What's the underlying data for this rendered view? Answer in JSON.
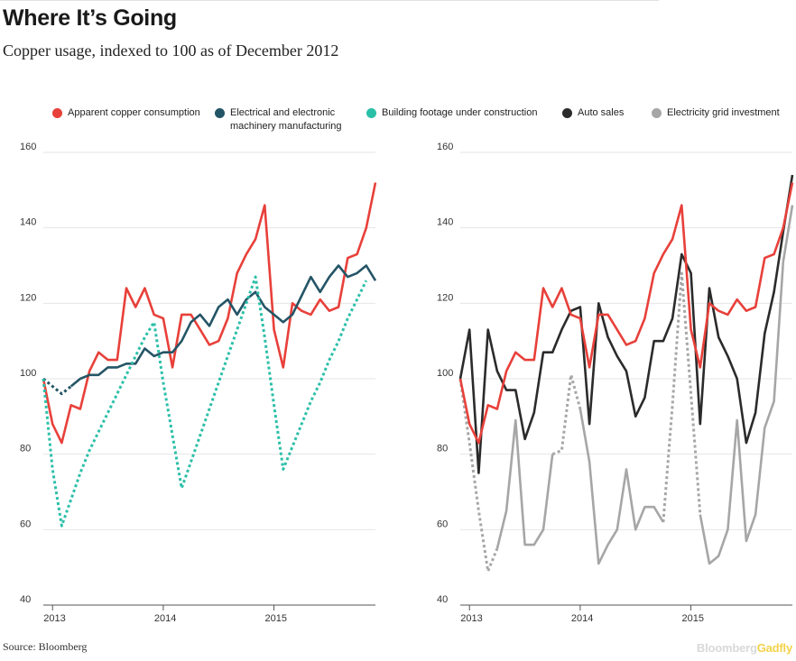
{
  "header": {
    "title": "Where It’s Going",
    "subtitle": "Copper usage, indexed to 100 as of December 2012"
  },
  "legend": [
    {
      "key": "copper",
      "label": "Apparent copper consumption",
      "color": "#e8403a"
    },
    {
      "key": "electrical",
      "label": "Electrical and electronic machinery manufacturing",
      "color": "#245566"
    },
    {
      "key": "building",
      "label": "Building footage under construction",
      "color": "#2bbfa8"
    },
    {
      "key": "auto",
      "label": "Auto sales",
      "color": "#2b2b2b"
    },
    {
      "key": "grid",
      "label": "Electricity grid investment",
      "color": "#a6a6a6"
    }
  ],
  "footer": {
    "source": "Source: Bloomberg",
    "brand_a": "Bloomberg",
    "brand_b": "Gadfly"
  },
  "chart_data": [
    {
      "type": "line",
      "x_start": "2012-12",
      "x_labels": [
        "2013",
        "2014",
        "2015"
      ],
      "ylim": [
        40,
        160
      ],
      "yticks": [
        40,
        60,
        80,
        100,
        120,
        140,
        160
      ],
      "series": [
        {
          "name": "Apparent copper consumption",
          "color": "#e8403a",
          "style": "solid",
          "values": [
            100,
            88,
            83,
            93,
            92,
            102,
            107,
            105,
            105,
            124,
            119,
            124,
            117,
            116,
            103,
            117,
            117,
            113,
            109,
            110,
            116,
            128,
            133,
            137,
            146,
            113,
            103,
            120,
            118,
            117,
            121,
            118,
            119,
            132,
            133,
            140,
            152
          ]
        },
        {
          "name": "Electrical and electronic machinery manufacturing",
          "color": "#245566",
          "style": "solid",
          "dashed_prefix": 3,
          "values": [
            100,
            98,
            96,
            98,
            100,
            101,
            101,
            103,
            103,
            104,
            104,
            108,
            106,
            107,
            107,
            110,
            115,
            117,
            114,
            119,
            121,
            117,
            121,
            123,
            119,
            117,
            115,
            117,
            122,
            127,
            123,
            127,
            130,
            127,
            128,
            130,
            126
          ]
        },
        {
          "name": "Building footage under construction",
          "color": "#2bbfa8",
          "style": "dotted",
          "values": [
            100,
            76,
            61,
            68,
            75,
            81,
            86,
            91,
            96,
            101,
            106,
            111,
            115,
            99,
            85,
            71,
            78,
            85,
            92,
            99,
            106,
            113,
            120,
            127,
            111,
            93,
            76,
            82,
            88,
            94,
            99,
            105,
            110,
            116,
            121,
            126
          ]
        }
      ]
    },
    {
      "type": "line",
      "x_start": "2012-12",
      "x_labels": [
        "2013",
        "2014",
        "2015"
      ],
      "ylim": [
        40,
        160
      ],
      "yticks": [
        40,
        60,
        80,
        100,
        120,
        140,
        160
      ],
      "series": [
        {
          "name": "Electricity grid investment",
          "color": "#a6a6a6",
          "style": "solid",
          "dotted_ranges": [
            [
              0,
              4
            ],
            [
              10,
              13
            ],
            [
              22,
              26
            ]
          ],
          "values": [
            100,
            83,
            65,
            49,
            55,
            65,
            89,
            56,
            56,
            60,
            80,
            81,
            101,
            92,
            78,
            51,
            56,
            60,
            76,
            60,
            66,
            66,
            62,
            93,
            128,
            96,
            64,
            51,
            53,
            60,
            89,
            57,
            64,
            87,
            94,
            131,
            146
          ]
        },
        {
          "name": "Auto sales",
          "color": "#2b2b2b",
          "style": "solid",
          "values": [
            100,
            113,
            75,
            113,
            102,
            97,
            97,
            84,
            91,
            107,
            107,
            113,
            118,
            119,
            88,
            120,
            111,
            106,
            102,
            90,
            95,
            110,
            110,
            116,
            133,
            128,
            88,
            124,
            111,
            106,
            100,
            83,
            91,
            112,
            123,
            139,
            154
          ]
        },
        {
          "name": "Apparent copper consumption",
          "color": "#e8403a",
          "style": "solid",
          "values": [
            100,
            88,
            83,
            93,
            92,
            102,
            107,
            105,
            105,
            124,
            119,
            124,
            117,
            116,
            103,
            117,
            117,
            113,
            109,
            110,
            116,
            128,
            133,
            137,
            146,
            113,
            103,
            120,
            118,
            117,
            121,
            118,
            119,
            132,
            133,
            140,
            152
          ]
        }
      ]
    }
  ]
}
